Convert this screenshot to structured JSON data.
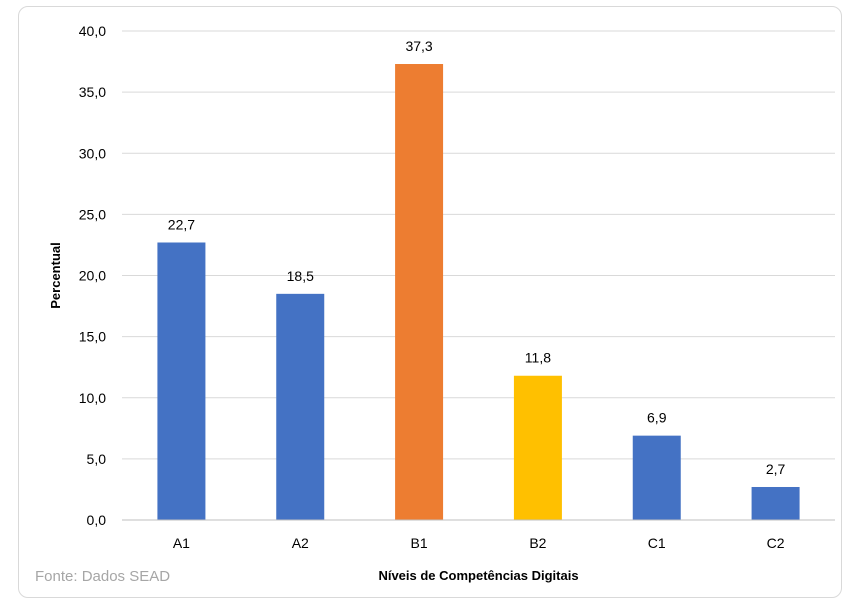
{
  "chart_data": {
    "type": "bar",
    "categories": [
      "A1",
      "A2",
      "B1",
      "B2",
      "C1",
      "C2"
    ],
    "values": [
      22.7,
      18.5,
      37.3,
      11.8,
      6.9,
      2.7
    ],
    "value_labels": [
      "22,7",
      "18,5",
      "37,3",
      "11,8",
      "6,9",
      "2,7"
    ],
    "bar_colors": [
      "#4472c4",
      "#4472c4",
      "#ed7d31",
      "#ffc000",
      "#4472c4",
      "#4472c4"
    ],
    "title": "",
    "xlabel": "Níveis de Competências Digitais",
    "ylabel": "Percentual",
    "ylim": [
      0,
      40
    ],
    "yticks": [
      0,
      5,
      10,
      15,
      20,
      25,
      30,
      35,
      40
    ],
    "ytick_labels": [
      "0,0",
      "5,0",
      "10,0",
      "15,0",
      "20,0",
      "25,0",
      "30,0",
      "35,0",
      "40,0"
    ],
    "grid": true,
    "legend": "none"
  },
  "source_note": "Fonte: Dados SEAD",
  "colors": {
    "gridline": "#d9d9d9",
    "axis": "#bfbfbf",
    "source_text": "#a6a6a6"
  }
}
